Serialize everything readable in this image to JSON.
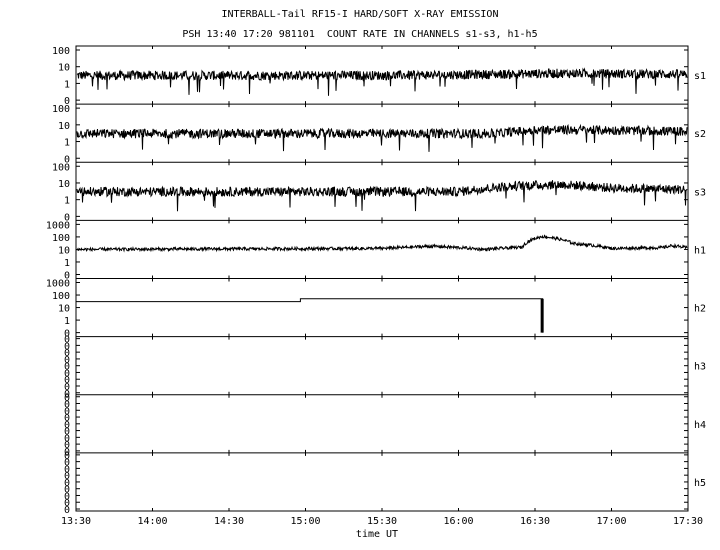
{
  "title": "INTERBALL-Tail RF15-I HARD/SOFT X-RAY EMISSION",
  "subtitle": "PSH 13:40 17:20 981101  COUNT RATE IN CHANNELS s1-s3, h1-h5",
  "chart_data": {
    "type": "line",
    "title": "INTERBALL-Tail RF15-I HARD/SOFT X-RAY EMISSION",
    "subtitle": "PSH 13:40 17:20 981101  COUNT RATE IN CHANNELS s1-s3, h1-h5",
    "xlabel": "time UT",
    "xlim": [
      "13:30",
      "17:30"
    ],
    "x_ticks": [
      "13:30",
      "14:00",
      "14:30",
      "15:00",
      "15:30",
      "16:00",
      "16:30",
      "17:00",
      "17:30"
    ],
    "panels": [
      {
        "name": "s1",
        "yticks": [
          "100",
          "10",
          "1",
          "0"
        ],
        "profile": [
          [
            "13:30",
            3
          ],
          [
            "15:30",
            3
          ],
          [
            "16:15",
            3.5
          ],
          [
            "16:40",
            4
          ],
          [
            "17:30",
            3.5
          ]
        ]
      },
      {
        "name": "s2",
        "yticks": [
          "100",
          "10",
          "1",
          "0"
        ],
        "profile": [
          [
            "13:30",
            3
          ],
          [
            "16:15",
            3
          ],
          [
            "16:30",
            5
          ],
          [
            "16:45",
            5
          ],
          [
            "17:30",
            4
          ]
        ]
      },
      {
        "name": "s3",
        "yticks": [
          "100",
          "10",
          "1",
          "0"
        ],
        "profile": [
          [
            "13:30",
            3
          ],
          [
            "16:00",
            3
          ],
          [
            "16:25",
            7
          ],
          [
            "16:40",
            8
          ],
          [
            "17:00",
            5
          ],
          [
            "17:30",
            4
          ]
        ]
      },
      {
        "name": "h1",
        "yticks": [
          "1000",
          "100",
          "10",
          "1",
          "0"
        ],
        "profile": [
          [
            "13:30",
            10
          ],
          [
            "15:30",
            12
          ],
          [
            "15:50",
            18
          ],
          [
            "16:10",
            10
          ],
          [
            "16:25",
            15
          ],
          [
            "16:33",
            110
          ],
          [
            "16:45",
            30
          ],
          [
            "17:00",
            12
          ],
          [
            "17:20",
            14
          ],
          [
            "17:24",
            20
          ],
          [
            "17:30",
            13
          ]
        ]
      },
      {
        "name": "h2",
        "yticks": [
          "1000",
          "100",
          "10",
          "1",
          "0"
        ],
        "profile": [
          [
            "13:30",
            30
          ],
          [
            "14:58",
            30
          ],
          [
            "14:58",
            50
          ],
          [
            "16:33",
            50
          ],
          [
            "16:33",
            0
          ]
        ]
      },
      {
        "name": "h3",
        "yticks": [
          "0",
          "0",
          "0",
          "0",
          "0",
          "0",
          "0",
          "0",
          "0"
        ],
        "profile": []
      },
      {
        "name": "h4",
        "yticks": [
          "0",
          "0",
          "0",
          "0",
          "0",
          "0",
          "0",
          "0",
          "0"
        ],
        "profile": []
      },
      {
        "name": "h5",
        "yticks": [
          "0",
          "0",
          "0",
          "0",
          "0",
          "0",
          "0",
          "0",
          "0"
        ],
        "profile": []
      }
    ]
  }
}
